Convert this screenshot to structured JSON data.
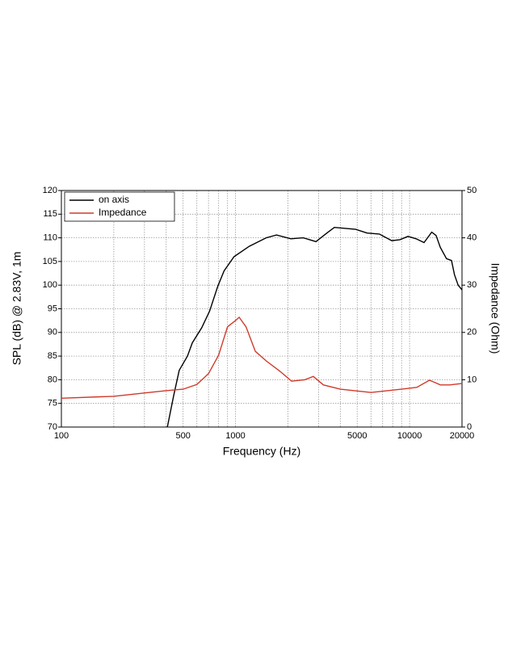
{
  "chart_data": {
    "type": "line",
    "xlabel": "Frequency (Hz)",
    "ylabel": "SPL (dB) @ 2.83V, 1m",
    "y2label": "Impedance (Ohm)",
    "xscale": "log",
    "xlim": [
      100,
      20000
    ],
    "xticks": [
      100,
      500,
      1000,
      5000,
      10000,
      20000
    ],
    "xgrid": [
      200,
      300,
      400,
      600,
      700,
      800,
      900,
      2000,
      3000,
      4000,
      6000,
      7000,
      8000,
      9000
    ],
    "ylim": [
      70,
      120
    ],
    "yticks": [
      70,
      75,
      80,
      85,
      90,
      95,
      100,
      105,
      110,
      115,
      120
    ],
    "y2lim": [
      0,
      50
    ],
    "y2ticks": [
      0,
      10,
      20,
      30,
      40,
      50
    ],
    "grid": true,
    "legend": "top-left",
    "series": [
      {
        "name": "on axis",
        "color": "#000000",
        "x": [
          406,
          442,
          475,
          530,
          565,
          640,
          710,
          790,
          860,
          980,
          1200,
          1500,
          1720,
          2080,
          2450,
          2900,
          3350,
          3700,
          4900,
          5700,
          6700,
          7900,
          8800,
          9800,
          10900,
          12100,
          13400,
          14200,
          15000,
          16300,
          17400,
          18100,
          19000,
          20000
        ],
        "values": [
          70,
          76.7,
          82,
          85,
          87.8,
          91,
          94.5,
          99.7,
          103,
          106,
          108.2,
          110,
          110.6,
          109.8,
          110,
          109.2,
          111,
          112.2,
          111.8,
          111,
          110.8,
          109.4,
          109.6,
          110.3,
          109.8,
          109,
          111.2,
          110.5,
          108,
          105.6,
          105.2,
          102.2,
          100,
          99
        ]
      },
      {
        "name": "Impedance",
        "color": "#d03a2a",
        "axis": "y2",
        "x": [
          100,
          200,
          300,
          400,
          500,
          600,
          700,
          800,
          900,
          1000,
          1050,
          1150,
          1300,
          1500,
          1800,
          2100,
          2500,
          2800,
          3200,
          4000,
          6000,
          9000,
          11000,
          13000,
          14000,
          15000,
          17000,
          20000
        ],
        "values": [
          6.1,
          6.5,
          7.2,
          7.7,
          8,
          9,
          11.3,
          15.2,
          21.2,
          22.5,
          23.2,
          21.2,
          16,
          14,
          11.8,
          9.7,
          10,
          10.7,
          8.9,
          8,
          7.3,
          8,
          8.4,
          9.9,
          9.4,
          8.9,
          8.9,
          9.2
        ]
      }
    ]
  }
}
